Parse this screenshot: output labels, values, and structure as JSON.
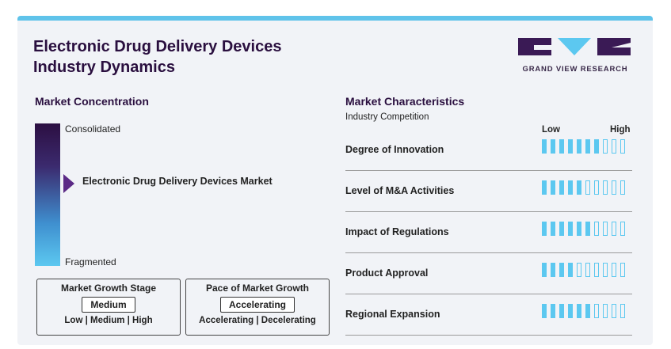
{
  "header": {
    "title_line1": "Electronic Drug Delivery Devices",
    "title_line2": "Industry Dynamics",
    "logo_text": "GRAND VIEW RESEARCH"
  },
  "concentration": {
    "heading": "Market Concentration",
    "top_label": "Consolidated",
    "bottom_label": "Fragmented",
    "marker_label": "Electronic Drug Delivery Devices Market"
  },
  "growth_stage": {
    "title": "Market Growth Stage",
    "value": "Medium",
    "scale": "Low | Medium | High"
  },
  "growth_pace": {
    "title": "Pace of Market Growth",
    "value": "Accelerating",
    "scale": "Accelerating | Decelerating"
  },
  "characteristics": {
    "heading": "Market Characteristics",
    "subheading": "Industry Competition",
    "low_label": "Low",
    "high_label": "High"
  },
  "colors": {
    "accent": "#5cc8f0",
    "title": "#2a0f3f",
    "marker": "#5b2a86"
  },
  "chart_data": {
    "type": "table",
    "max_score": 10,
    "rows": [
      {
        "label": "Degree of Innovation",
        "value": 7
      },
      {
        "label": "Level of M&A Activities",
        "value": 5
      },
      {
        "label": "Impact of Regulations",
        "value": 6
      },
      {
        "label": "Product Approval",
        "value": 4
      },
      {
        "label": "Regional Expansion",
        "value": 6
      }
    ]
  }
}
